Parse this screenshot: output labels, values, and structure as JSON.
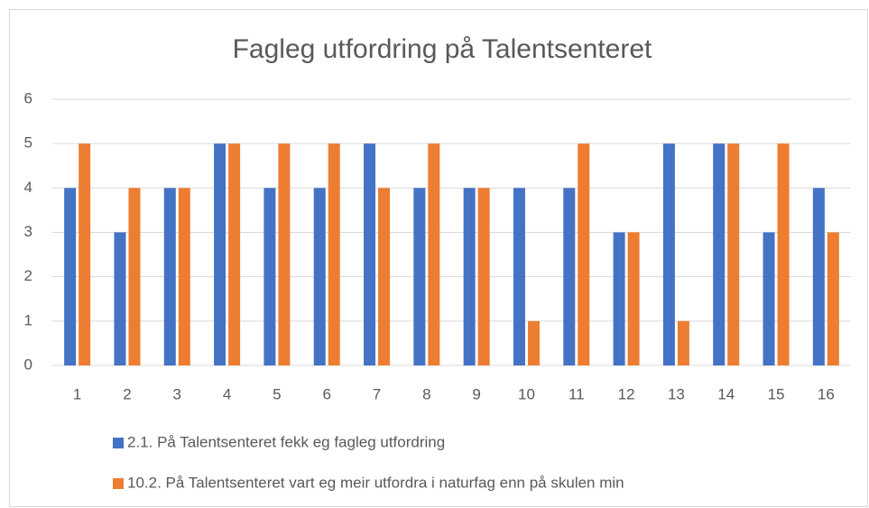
{
  "chart_data": {
    "type": "bar",
    "title": "Fagleg utfordring på Talentsenteret",
    "categories": [
      "1",
      "2",
      "3",
      "4",
      "5",
      "6",
      "7",
      "8",
      "9",
      "10",
      "11",
      "12",
      "13",
      "14",
      "15",
      "16"
    ],
    "series": [
      {
        "name": "2.1. På Talentsenteret fekk eg fagleg utfordring",
        "color": "#4472c4",
        "values": [
          4,
          3,
          4,
          5,
          4,
          4,
          5,
          4,
          4,
          4,
          4,
          3,
          5,
          5,
          3,
          4
        ]
      },
      {
        "name": "10.2. På Talentsenteret vart eg meir utfordra i naturfag enn på skulen min",
        "color": "#ed7d31",
        "values": [
          5,
          4,
          4,
          5,
          5,
          5,
          4,
          5,
          4,
          1,
          5,
          3,
          1,
          5,
          5,
          3
        ]
      }
    ],
    "ylim": [
      0,
      6
    ],
    "yticks": [
      0,
      1,
      2,
      3,
      4,
      5,
      6
    ],
    "grid": true,
    "legend": "bottom"
  }
}
